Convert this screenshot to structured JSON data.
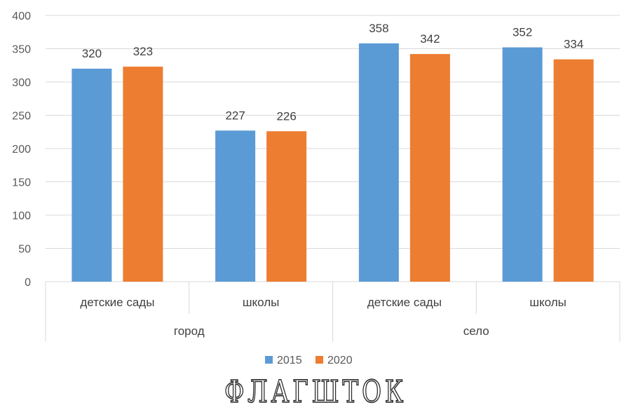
{
  "chart_data": {
    "type": "bar",
    "groups": [
      {
        "label": "город",
        "categories": [
          "детские сады",
          "школы"
        ]
      },
      {
        "label": "село",
        "categories": [
          "детские сады",
          "школы"
        ]
      }
    ],
    "categories": [
      "детские сады",
      "школы",
      "детские сады",
      "школы"
    ],
    "series": [
      {
        "name": "2015",
        "values": [
          320,
          227,
          358,
          352
        ],
        "color": "#5B9BD5"
      },
      {
        "name": "2020",
        "values": [
          323,
          226,
          342,
          334
        ],
        "color": "#ED7D31"
      }
    ],
    "ylim": [
      0,
      400
    ],
    "yticks": [
      0,
      50,
      100,
      150,
      200,
      250,
      300,
      350,
      400
    ],
    "grid": true,
    "legend_position": "bottom"
  },
  "watermark": "ФЛАГШТОК"
}
